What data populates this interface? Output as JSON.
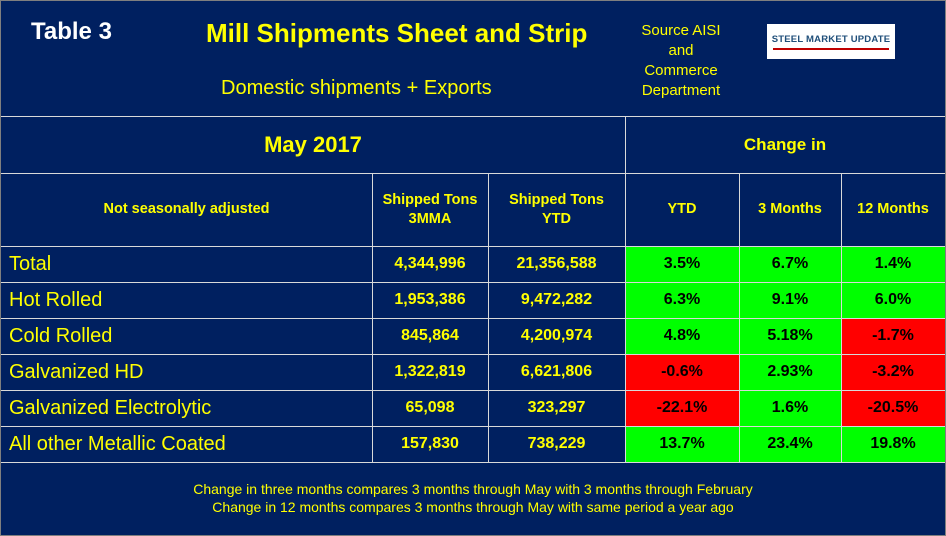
{
  "header": {
    "table_label": "Table 3",
    "title": "Mill Shipments Sheet and Strip",
    "subtitle": "Domestic shipments + Exports",
    "source_line1": "Source AISI",
    "source_line2": "and",
    "source_line3": "Commerce",
    "source_line4": "Department",
    "logo_text": "STEEL MARKET UPDATE"
  },
  "table": {
    "period": "May 2017",
    "change_in": "Change in",
    "row_header": "Not seasonally adjusted",
    "col_3mma_line1": "Shipped Tons",
    "col_3mma_line2": "3MMA",
    "col_ytd_line1": "Shipped Tons",
    "col_ytd_line2": "YTD",
    "col_chg_ytd": "YTD",
    "col_chg_3m": "3 Months",
    "col_chg_12m": "12 Months"
  },
  "colors": {
    "background": "#002060",
    "text": "#ffff00",
    "positive": "#00ff00",
    "negative": "#ff0000"
  },
  "chart_data": {
    "type": "table",
    "title": "Mill Shipments Sheet and Strip",
    "subtitle": "Domestic shipments + Exports",
    "period": "May 2017",
    "columns": [
      "Not seasonally adjusted",
      "Shipped Tons 3MMA",
      "Shipped Tons YTD",
      "YTD",
      "3 Months",
      "12 Months"
    ],
    "rows": [
      {
        "label": "Total",
        "tons_3mma": "4,344,996",
        "tons_ytd": "21,356,588",
        "chg_ytd": "3.5%",
        "chg_3m": "6.7%",
        "chg_12m": "1.4%",
        "v_ytd": 3.5,
        "v_3m": 6.7,
        "v_12m": 1.4
      },
      {
        "label": "Hot Rolled",
        "tons_3mma": "1,953,386",
        "tons_ytd": "9,472,282",
        "chg_ytd": "6.3%",
        "chg_3m": "9.1%",
        "chg_12m": "6.0%",
        "v_ytd": 6.3,
        "v_3m": 9.1,
        "v_12m": 6.0
      },
      {
        "label": "Cold Rolled",
        "tons_3mma": "845,864",
        "tons_ytd": "4,200,974",
        "chg_ytd": "4.8%",
        "chg_3m": "5.18%",
        "chg_12m": "-1.7%",
        "v_ytd": 4.8,
        "v_3m": 5.18,
        "v_12m": -1.7
      },
      {
        "label": "Galvanized HD",
        "tons_3mma": "1,322,819",
        "tons_ytd": "6,621,806",
        "chg_ytd": "-0.6%",
        "chg_3m": "2.93%",
        "chg_12m": "-3.2%",
        "v_ytd": -0.6,
        "v_3m": 2.93,
        "v_12m": -3.2
      },
      {
        "label": "Galvanized Electrolytic",
        "tons_3mma": "65,098",
        "tons_ytd": "323,297",
        "chg_ytd": "-22.1%",
        "chg_3m": "1.6%",
        "chg_12m": "-20.5%",
        "v_ytd": -22.1,
        "v_3m": 1.6,
        "v_12m": -20.5
      },
      {
        "label": "All other Metallic Coated",
        "tons_3mma": "157,830",
        "tons_ytd": "738,229",
        "chg_ytd": "13.7%",
        "chg_3m": "23.4%",
        "chg_12m": "19.8%",
        "v_ytd": 13.7,
        "v_3m": 23.4,
        "v_12m": 19.8
      }
    ]
  },
  "footnote": {
    "line1": "Change in three months compares 3 months through May with 3 months through February",
    "line2": "Change in 12 months compares 3 months through May with same period a year ago"
  }
}
